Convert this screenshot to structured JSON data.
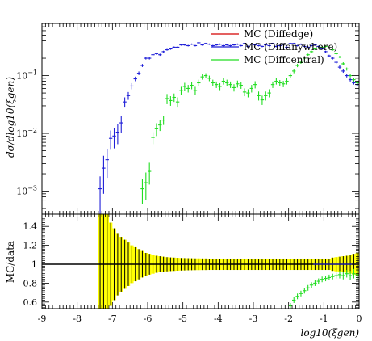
{
  "chart_data": [
    {
      "type": "scatter",
      "panel": "main",
      "ylabel": "dσ/dlog10(ξgen)",
      "yscale": "log",
      "ylim": [
        0.0004,
        0.8
      ],
      "xlim": [
        -9,
        0
      ],
      "yticks": [
        {
          "value": 0.1,
          "base": "10",
          "exp": "−1"
        },
        {
          "value": 0.01,
          "base": "10",
          "exp": "−2"
        },
        {
          "value": 0.001,
          "base": "10",
          "exp": "−3"
        }
      ],
      "legend_position": "top-right",
      "series": [
        {
          "name": "MC (Diffedge)",
          "color": "#d40000",
          "x": [],
          "y": [],
          "err": []
        },
        {
          "name": "MC (Diffanywhere)",
          "color": "#1f1fd8",
          "x": [
            -7.35,
            -7.25,
            -7.15,
            -7.05,
            -6.95,
            -6.85,
            -6.75,
            -6.65,
            -6.55,
            -6.45,
            -6.35,
            -6.25,
            -6.15,
            -6.05,
            -5.95,
            -5.85,
            -5.75,
            -5.65,
            -5.55,
            -5.45,
            -5.35,
            -5.25,
            -5.15,
            -5.05,
            -4.95,
            -4.85,
            -4.75,
            -4.65,
            -4.55,
            -4.45,
            -4.35,
            -4.25,
            -4.15,
            -4.05,
            -3.95,
            -3.85,
            -3.75,
            -3.65,
            -3.55,
            -3.45,
            -3.35,
            -3.25,
            -3.15,
            -3.05,
            -2.95,
            -2.85,
            -2.75,
            -2.65,
            -2.55,
            -2.45,
            -2.35,
            -2.25,
            -2.15,
            -2.05,
            -1.95,
            -1.85,
            -1.75,
            -1.65,
            -1.55,
            -1.45,
            -1.35,
            -1.25,
            -1.15,
            -1.05,
            -0.95,
            -0.85,
            -0.75,
            -0.65,
            -0.55,
            -0.45,
            -0.35,
            -0.25,
            -0.15,
            -0.05
          ],
          "y": [
            0.0011,
            0.0025,
            0.0035,
            0.0082,
            0.009,
            0.0105,
            0.0152,
            0.035,
            0.045,
            0.066,
            0.088,
            0.11,
            0.15,
            0.2,
            0.2,
            0.23,
            0.24,
            0.23,
            0.26,
            0.28,
            0.29,
            0.31,
            0.31,
            0.34,
            0.34,
            0.33,
            0.35,
            0.33,
            0.37,
            0.34,
            0.36,
            0.35,
            0.33,
            0.34,
            0.35,
            0.33,
            0.34,
            0.33,
            0.34,
            0.35,
            0.33,
            0.36,
            0.32,
            0.35,
            0.34,
            0.33,
            0.32,
            0.34,
            0.33,
            0.36,
            0.32,
            0.33,
            0.35,
            0.31,
            0.36,
            0.36,
            0.33,
            0.35,
            0.32,
            0.31,
            0.33,
            0.34,
            0.32,
            0.29,
            0.26,
            0.22,
            0.2,
            0.17,
            0.14,
            0.12,
            0.1,
            0.085,
            0.075,
            0.07
          ],
          "err": [
            0.0007,
            0.0016,
            0.0018,
            0.003,
            0.0035,
            0.004,
            0.005,
            0.007,
            0.007,
            0.008,
            0.008,
            0.008,
            0.009,
            0.01,
            0.01,
            0.01,
            0.01,
            0.01,
            0.01,
            0.01,
            0.01,
            0.01,
            0.01,
            0.01,
            0.01,
            0.01,
            0.01,
            0.01,
            0.01,
            0.01,
            0.01,
            0.01,
            0.01,
            0.01,
            0.01,
            0.01,
            0.01,
            0.01,
            0.01,
            0.01,
            0.01,
            0.01,
            0.01,
            0.01,
            0.01,
            0.01,
            0.01,
            0.01,
            0.01,
            0.01,
            0.01,
            0.01,
            0.01,
            0.01,
            0.01,
            0.01,
            0.01,
            0.01,
            0.01,
            0.01,
            0.01,
            0.01,
            0.01,
            0.01,
            0.01,
            0.01,
            0.01,
            0.01,
            0.01,
            0.008,
            0.007,
            0.006,
            0.005,
            0.005
          ]
        },
        {
          "name": "MC (Diffcentral)",
          "color": "#22dd22",
          "x": [
            -6.15,
            -6.05,
            -5.95,
            -5.85,
            -5.75,
            -5.65,
            -5.55,
            -5.45,
            -5.35,
            -5.25,
            -5.15,
            -5.05,
            -4.95,
            -4.85,
            -4.75,
            -4.65,
            -4.55,
            -4.45,
            -4.35,
            -4.25,
            -4.15,
            -4.05,
            -3.95,
            -3.85,
            -3.75,
            -3.65,
            -3.55,
            -3.45,
            -3.35,
            -3.25,
            -3.15,
            -3.05,
            -2.95,
            -2.85,
            -2.75,
            -2.65,
            -2.55,
            -2.45,
            -2.35,
            -2.25,
            -2.15,
            -2.05,
            -1.95,
            -1.85,
            -1.75,
            -1.65,
            -1.55,
            -1.45,
            -1.35,
            -1.25,
            -1.15,
            -1.05,
            -0.95,
            -0.85,
            -0.75,
            -0.65,
            -0.55,
            -0.45,
            -0.35,
            -0.25,
            -0.15,
            -0.05
          ],
          "y": [
            0.0011,
            0.0014,
            0.0022,
            0.0085,
            0.012,
            0.014,
            0.017,
            0.04,
            0.037,
            0.042,
            0.035,
            0.055,
            0.065,
            0.06,
            0.068,
            0.055,
            0.075,
            0.095,
            0.1,
            0.09,
            0.075,
            0.07,
            0.065,
            0.08,
            0.075,
            0.07,
            0.062,
            0.072,
            0.068,
            0.052,
            0.05,
            0.06,
            0.07,
            0.045,
            0.038,
            0.045,
            0.05,
            0.07,
            0.08,
            0.075,
            0.072,
            0.08,
            0.1,
            0.12,
            0.15,
            0.17,
            0.2,
            0.23,
            0.26,
            0.29,
            0.3,
            0.31,
            0.32,
            0.3,
            0.28,
            0.24,
            0.21,
            0.16,
            0.13,
            0.1,
            0.085,
            0.075
          ],
          "err": [
            0.0005,
            0.0007,
            0.0009,
            0.002,
            0.003,
            0.003,
            0.003,
            0.008,
            0.007,
            0.007,
            0.007,
            0.009,
            0.01,
            0.009,
            0.01,
            0.009,
            0.01,
            0.01,
            0.01,
            0.01,
            0.01,
            0.009,
            0.009,
            0.01,
            0.01,
            0.009,
            0.009,
            0.01,
            0.009,
            0.008,
            0.008,
            0.009,
            0.01,
            0.008,
            0.007,
            0.008,
            0.008,
            0.009,
            0.01,
            0.009,
            0.009,
            0.01,
            0.01,
            0.01,
            0.01,
            0.01,
            0.01,
            0.01,
            0.01,
            0.01,
            0.01,
            0.01,
            0.01,
            0.01,
            0.01,
            0.01,
            0.01,
            0.01,
            0.008,
            0.007,
            0.006,
            0.005
          ]
        }
      ]
    },
    {
      "type": "scatter",
      "panel": "ratio",
      "ylabel": "MC/data",
      "xlabel": "log10(ξgen)",
      "xlim": [
        -9,
        0
      ],
      "ylim": [
        0.53,
        1.53
      ],
      "xticks": [
        "-9",
        "-8",
        "-7",
        "-6",
        "-5",
        "-4",
        "-3",
        "-2",
        "-1",
        "0"
      ],
      "yticks": [
        "0.6",
        "0.8",
        "1",
        "1.2",
        "1.4"
      ],
      "reference_line": 1,
      "band": {
        "color": "#ffff00",
        "x": [
          -7.35,
          -7.25,
          -7.15,
          -7.05,
          -6.95,
          -6.85,
          -6.75,
          -6.65,
          -6.55,
          -6.45,
          -6.35,
          -6.25,
          -6.15,
          -6.05,
          -5.95,
          -5.85,
          -5.75,
          -5.65,
          -5.55,
          -5.45,
          -5.35,
          -5.25,
          -5.15,
          -5.05,
          -4.95,
          -4.85,
          -4.75,
          -4.65,
          -4.55,
          -4.45,
          -4.35,
          -4.25,
          -4.15,
          -4.05,
          -3.95,
          -3.85,
          -3.75,
          -3.65,
          -3.55,
          -3.45,
          -3.35,
          -3.25,
          -3.15,
          -3.05,
          -2.95,
          -2.85,
          -2.75,
          -2.65,
          -2.55,
          -2.45,
          -2.35,
          -2.25,
          -2.15,
          -2.05,
          -1.95,
          -1.85,
          -1.75,
          -1.65,
          -1.55,
          -1.45,
          -1.35,
          -1.25,
          -1.15,
          -1.05,
          -0.95,
          -0.85,
          -0.75,
          -0.65,
          -0.55,
          -0.45,
          -0.35,
          -0.25,
          -0.15,
          -0.05
        ],
        "half_width": [
          0.6,
          0.6,
          0.6,
          0.44,
          0.38,
          0.33,
          0.29,
          0.26,
          0.23,
          0.2,
          0.18,
          0.16,
          0.14,
          0.12,
          0.11,
          0.1,
          0.09,
          0.085,
          0.08,
          0.075,
          0.072,
          0.07,
          0.068,
          0.066,
          0.065,
          0.064,
          0.063,
          0.062,
          0.062,
          0.061,
          0.061,
          0.06,
          0.06,
          0.06,
          0.06,
          0.06,
          0.06,
          0.06,
          0.06,
          0.06,
          0.06,
          0.06,
          0.06,
          0.06,
          0.06,
          0.06,
          0.06,
          0.06,
          0.06,
          0.06,
          0.06,
          0.06,
          0.06,
          0.06,
          0.06,
          0.06,
          0.06,
          0.06,
          0.06,
          0.06,
          0.06,
          0.06,
          0.06,
          0.06,
          0.06,
          0.06,
          0.07,
          0.075,
          0.08,
          0.085,
          0.09,
          0.1,
          0.11,
          0.12
        ]
      },
      "series": [
        {
          "name": "MC (Diffanywhere)",
          "color": "#1f1fd8",
          "x": [
            -1.25,
            -1.15,
            -1.05,
            -0.95,
            -0.85,
            -0.75,
            -0.65,
            -0.55,
            -0.45,
            -0.35,
            -0.25,
            -0.15,
            -0.05
          ],
          "y": [
            1,
            1,
            1,
            1,
            1,
            1,
            1,
            1,
            1,
            1,
            1,
            1,
            1
          ]
        },
        {
          "name": "MC (Diffcentral)",
          "color": "#22dd22",
          "x": [
            -1.95,
            -1.85,
            -1.75,
            -1.65,
            -1.55,
            -1.45,
            -1.35,
            -1.25,
            -1.15,
            -1.05,
            -0.95,
            -0.85,
            -0.75,
            -0.65,
            -0.55,
            -0.45,
            -0.35,
            -0.25,
            -0.15,
            -0.05
          ],
          "y": [
            0.56,
            0.62,
            0.66,
            0.69,
            0.72,
            0.75,
            0.78,
            0.8,
            0.82,
            0.84,
            0.85,
            0.86,
            0.87,
            0.88,
            0.89,
            0.88,
            0.9,
            0.88,
            0.9,
            0.89
          ],
          "err": [
            0.03,
            0.03,
            0.03,
            0.03,
            0.03,
            0.03,
            0.03,
            0.03,
            0.03,
            0.03,
            0.03,
            0.03,
            0.03,
            0.03,
            0.04,
            0.04,
            0.04,
            0.05,
            0.05,
            0.06
          ]
        }
      ]
    }
  ]
}
